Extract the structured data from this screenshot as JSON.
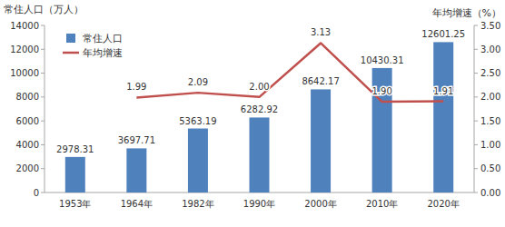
{
  "chart_data": {
    "type": "bar",
    "y_label": "常住人口（万人）",
    "y2_label": "年均增速（%）",
    "categories": [
      "1953年",
      "1964年",
      "1982年",
      "1990年",
      "2000年",
      "2010年",
      "2020年"
    ],
    "series": [
      {
        "name": "常住人口",
        "type": "bar",
        "color": "#4f81bd",
        "values": [
          2978.31,
          3697.71,
          5363.19,
          6282.92,
          8642.17,
          10430.31,
          12601.25
        ]
      },
      {
        "name": "年均增速",
        "type": "line",
        "color": "#c0504d",
        "axis": "y2",
        "values": [
          null,
          1.99,
          2.09,
          2.0,
          3.13,
          1.9,
          1.91
        ],
        "value_labels": [
          null,
          "1.99",
          "2.09",
          "2.00",
          "3.13",
          "1.90",
          "1.91"
        ]
      }
    ],
    "ylim": [
      0,
      14000
    ],
    "yticks": [
      0,
      2000,
      4000,
      6000,
      8000,
      10000,
      12000,
      14000
    ],
    "y2lim": [
      0,
      3.5
    ],
    "y2ticks": [
      {
        "value": 0,
        "label": "0.00"
      },
      {
        "value": 0.5,
        "label": "0.50"
      },
      {
        "value": 1,
        "label": "1.00"
      },
      {
        "value": 1.5,
        "label": "1.50"
      },
      {
        "value": 2,
        "label": "2.00"
      },
      {
        "value": 2.5,
        "label": "2.50"
      },
      {
        "value": 3,
        "label": "3.00"
      },
      {
        "value": 3.5,
        "label": "3.50"
      }
    ],
    "grid": false,
    "legend": "top-left",
    "data_labels": true
  }
}
